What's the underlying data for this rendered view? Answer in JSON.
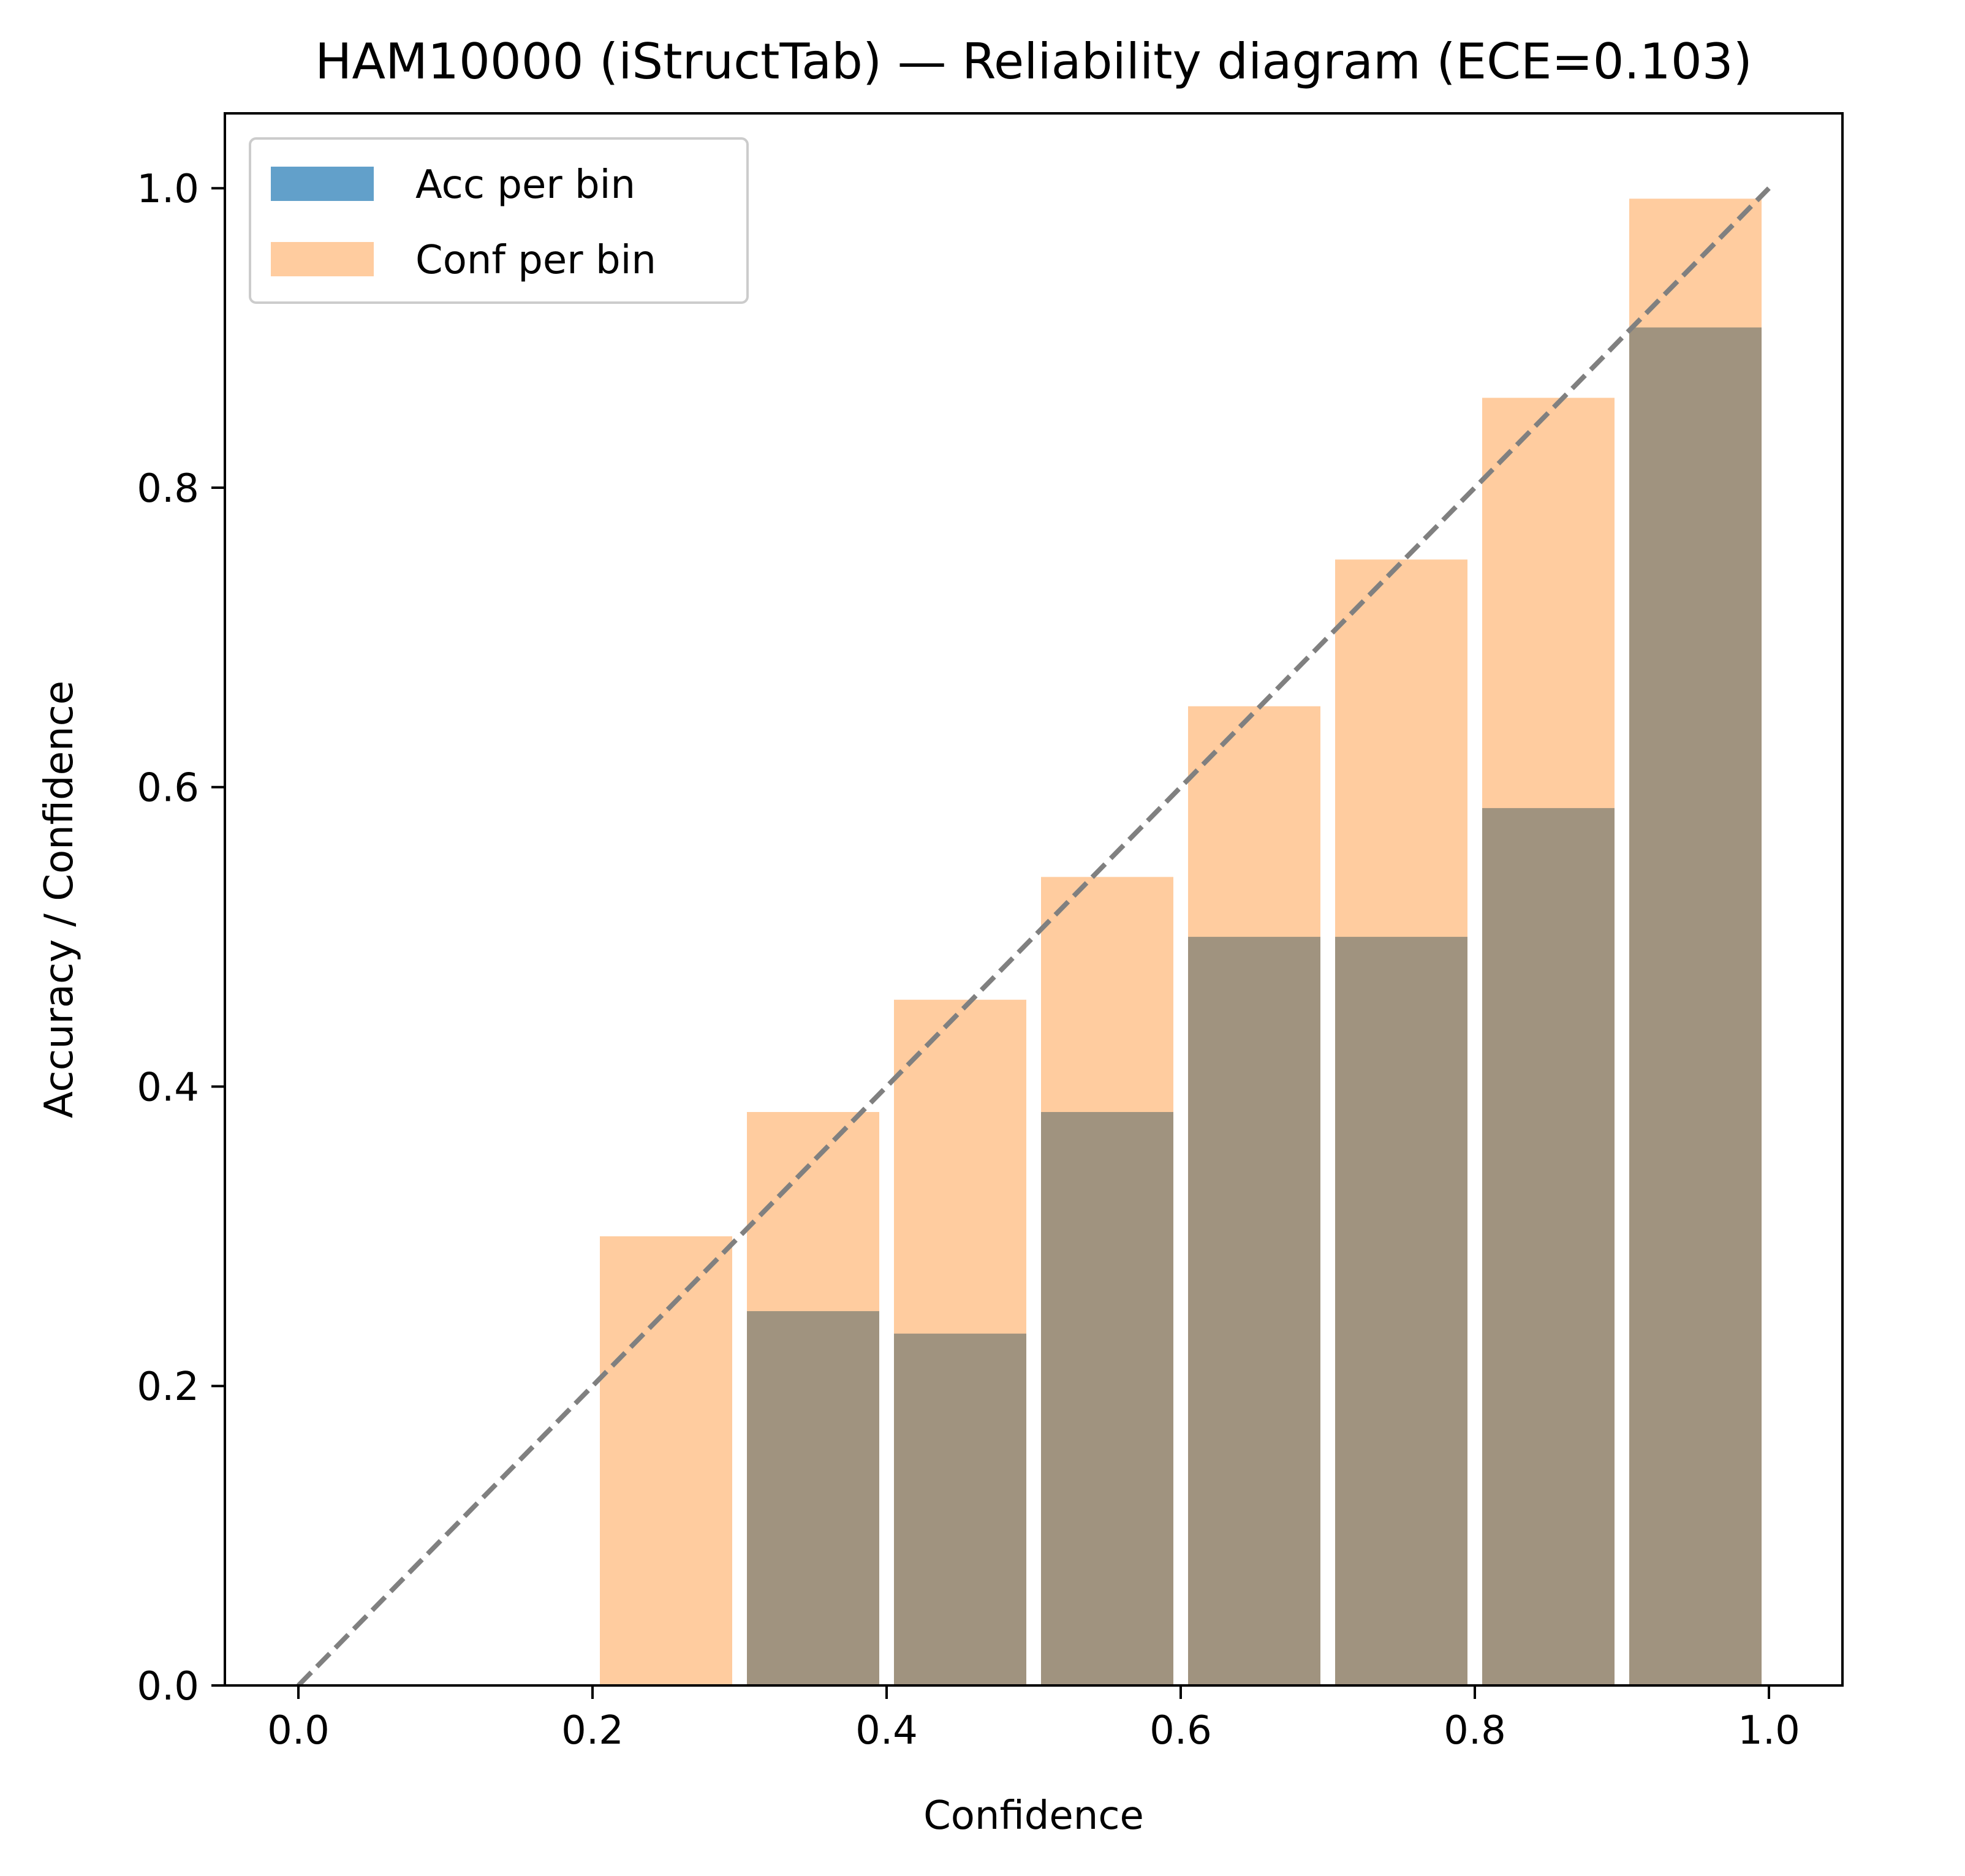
{
  "chart_data": {
    "type": "bar",
    "title": "HAM10000 (iStructTab) — Reliability diagram (ECE=0.103)",
    "xlabel": "Confidence",
    "ylabel": "Accuracy / Confidence",
    "xlim": [
      -0.05,
      1.05
    ],
    "ylim": [
      0.0,
      1.05
    ],
    "xticks": [
      "0.0",
      "0.2",
      "0.4",
      "0.6",
      "0.8",
      "1.0"
    ],
    "yticks": [
      "0.0",
      "0.2",
      "0.4",
      "0.6",
      "0.8",
      "1.0"
    ],
    "bin_centers": [
      0.25,
      0.35,
      0.45,
      0.55,
      0.65,
      0.75,
      0.85,
      0.95
    ],
    "bin_width": 0.09,
    "series": [
      {
        "name": "Acc per bin",
        "color": "#1f77b4",
        "alpha": 0.7,
        "values": [
          0.0,
          0.25,
          0.235,
          0.383,
          0.5,
          0.5,
          0.586,
          0.907
        ]
      },
      {
        "name": "Conf per bin",
        "color": "#ff7f0e",
        "alpha": 0.4,
        "values": [
          0.3,
          0.383,
          0.458,
          0.54,
          0.654,
          0.752,
          0.86,
          0.993
        ]
      }
    ],
    "diagonal": {
      "from": [
        0,
        0
      ],
      "to": [
        1,
        1
      ],
      "color": "#808080",
      "style": "dashed"
    },
    "legend_position": "top-left",
    "grid": false
  }
}
